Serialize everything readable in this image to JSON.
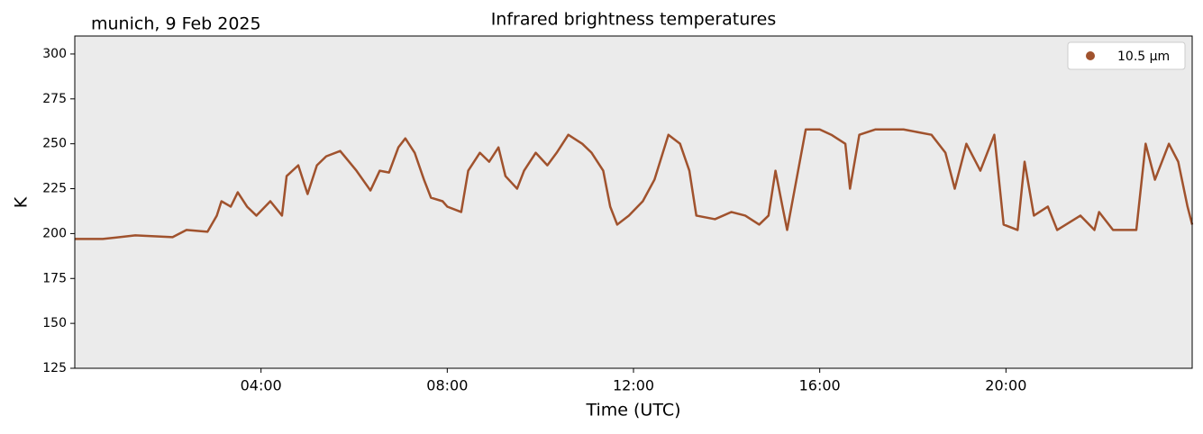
{
  "chart_data": {
    "type": "line",
    "title": "Infrared brightness temperatures",
    "annotation": "munich, 9 Feb 2025",
    "xlabel": "Time (UTC)",
    "ylabel": "K",
    "x": [
      0,
      0.6,
      1.3,
      2.1,
      2.4,
      2.85,
      3.05,
      3.15,
      3.35,
      3.5,
      3.7,
      3.9,
      4.2,
      4.45,
      4.55,
      4.8,
      5.0,
      5.2,
      5.4,
      5.7,
      6.05,
      6.35,
      6.55,
      6.75,
      6.95,
      7.1,
      7.3,
      7.5,
      7.65,
      7.9,
      8.0,
      8.3,
      8.45,
      8.7,
      8.9,
      9.1,
      9.25,
      9.5,
      9.65,
      9.9,
      10.15,
      10.35,
      10.6,
      10.9,
      11.1,
      11.35,
      11.5,
      11.65,
      11.9,
      12.2,
      12.45,
      12.75,
      13.0,
      13.2,
      13.35,
      13.75,
      14.1,
      14.4,
      14.7,
      14.9,
      15.05,
      15.2,
      15.3,
      15.5,
      15.7,
      16.0,
      16.25,
      16.55,
      16.65,
      16.85,
      17.2,
      17.8,
      18.4,
      18.7,
      18.9,
      19.15,
      19.45,
      19.75,
      19.95,
      20.25,
      20.4,
      20.6,
      20.9,
      21.1,
      21.6,
      21.9,
      22.0,
      22.3,
      22.8,
      23.0,
      23.2,
      23.5,
      23.7,
      23.9,
      24.0
    ],
    "series": [
      {
        "name": "10.5 µm",
        "color": "#a0522d",
        "values": [
          197,
          197,
          199,
          198,
          202,
          201,
          210,
          218,
          215,
          223,
          215,
          210,
          218,
          210,
          232,
          238,
          222,
          238,
          243,
          246,
          235,
          224,
          235,
          234,
          248,
          253,
          245,
          230,
          220,
          218,
          215,
          212,
          235,
          245,
          240,
          248,
          232,
          225,
          235,
          245,
          238,
          245,
          255,
          250,
          245,
          235,
          215,
          205,
          210,
          218,
          230,
          255,
          250,
          235,
          210,
          208,
          212,
          210,
          205,
          210,
          235,
          215,
          202,
          230,
          258,
          258,
          255,
          250,
          225,
          255,
          258,
          258,
          255,
          245,
          225,
          250,
          235,
          255,
          205,
          202,
          240,
          210,
          215,
          202,
          210,
          202,
          212,
          202,
          202,
          250,
          230,
          250,
          240,
          215,
          205
        ]
      }
    ],
    "xlim": [
      0,
      24
    ],
    "xticks": [
      {
        "value": 4,
        "label": "04:00"
      },
      {
        "value": 8,
        "label": "08:00"
      },
      {
        "value": 12,
        "label": "12:00"
      },
      {
        "value": 16,
        "label": "16:00"
      },
      {
        "value": 20,
        "label": "20:00"
      }
    ],
    "ylim": [
      125,
      310
    ],
    "yticks": [
      125,
      150,
      175,
      200,
      225,
      250,
      275,
      300
    ],
    "legend": "upper right",
    "background": "#ebebeb"
  }
}
